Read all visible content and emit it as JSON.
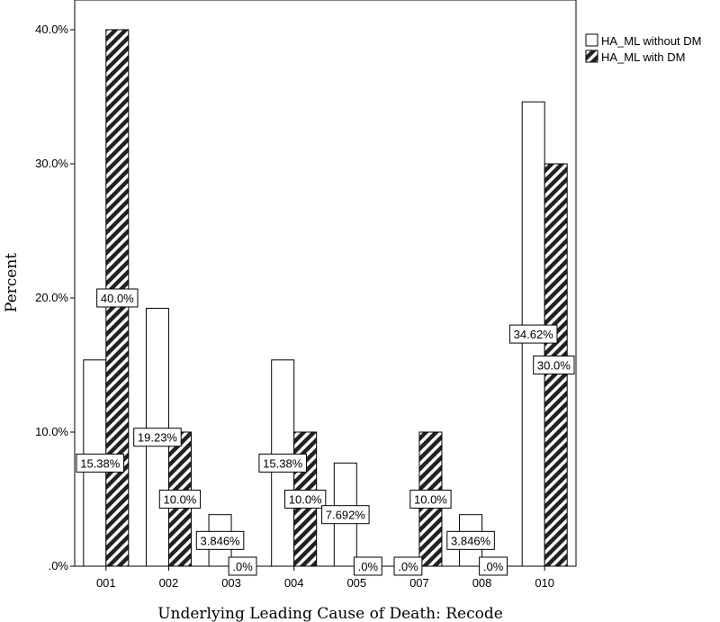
{
  "chart_data": {
    "type": "bar",
    "title": "",
    "xlabel": "Underlying Leading Cause of Death: Recode",
    "ylabel": "Percent",
    "ylim": [
      0,
      44
    ],
    "yticks": [
      0,
      10,
      20,
      30,
      40
    ],
    "ytick_labels": [
      ".0%",
      "10.0%",
      "20.0%",
      "30.0%",
      "40.0%"
    ],
    "categories": [
      "001",
      "002",
      "003",
      "004",
      "005",
      "007",
      "008",
      "010"
    ],
    "legend_position": "top-right",
    "series": [
      {
        "name": "HA_ML without DM",
        "fill": "white",
        "values": [
          15.38,
          19.23,
          3.846,
          15.38,
          7.692,
          0,
          3.846,
          34.62
        ],
        "labels": [
          "15.38%",
          "19.23%",
          "3.846%",
          "15.38%",
          "7.692%",
          ".0%",
          "3.846%",
          "34.62%"
        ]
      },
      {
        "name": "HA_ML with DM",
        "fill": "hatched",
        "values": [
          40.0,
          10.0,
          0,
          10.0,
          0,
          10.0,
          0,
          30.0
        ],
        "labels": [
          "40.0%",
          "10.0%",
          ".0%",
          "10.0%",
          ".0%",
          "10.0%",
          ".0%",
          "30.0%"
        ]
      }
    ]
  }
}
